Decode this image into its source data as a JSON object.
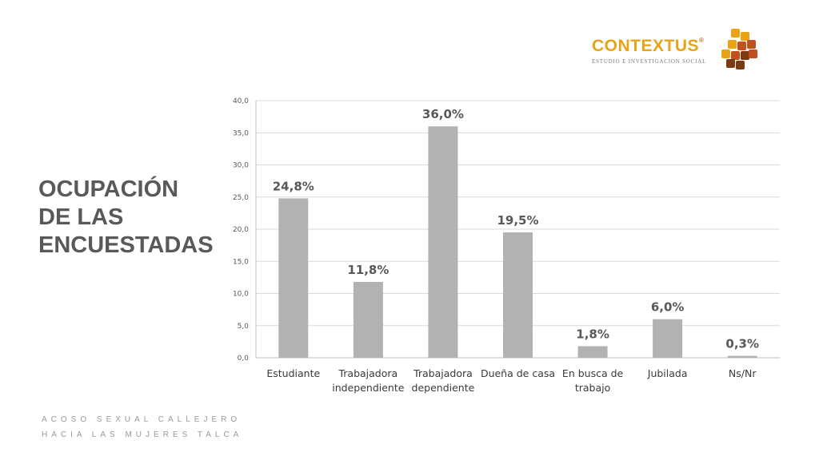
{
  "slide": {
    "title_lines": [
      "OCUPACIÓN",
      "DE LAS",
      "ENCUESTADAS"
    ],
    "footer_lines": [
      "ACOSO SEXUAL CALLEJERO",
      "HACIA LAS MUJERES TALCA"
    ]
  },
  "logo": {
    "name": "CONTEXTUS",
    "registered_mark": "®",
    "tagline": "ESTUDIO E INVESTIGACION SOCIAL",
    "colors": [
      "#e8a317",
      "#c0501d",
      "#7a3b12"
    ]
  },
  "chart_data": {
    "type": "bar",
    "categories": [
      [
        "Estudiante"
      ],
      [
        "Trabajadora",
        "independiente"
      ],
      [
        "Trabajadora",
        "dependiente"
      ],
      [
        "Dueña de casa"
      ],
      [
        "En busca de",
        "trabajo"
      ],
      [
        "Jubilada"
      ],
      [
        "Ns/Nr"
      ]
    ],
    "values": [
      24.8,
      11.8,
      36.0,
      19.5,
      1.8,
      6.0,
      0.3
    ],
    "data_labels": [
      "24,8%",
      "11,8%",
      "36,0%",
      "19,5%",
      "1,8%",
      "6,0%",
      "0,3%"
    ],
    "y_ticks": [
      "0,0",
      "5,0",
      "10,0",
      "15,0",
      "20,0",
      "25,0",
      "30,0",
      "35,0",
      "40,0"
    ],
    "ylim": [
      0,
      40
    ],
    "grid": true,
    "bar_color": "#b2b2b2",
    "grid_color": "#d9d9d9"
  }
}
